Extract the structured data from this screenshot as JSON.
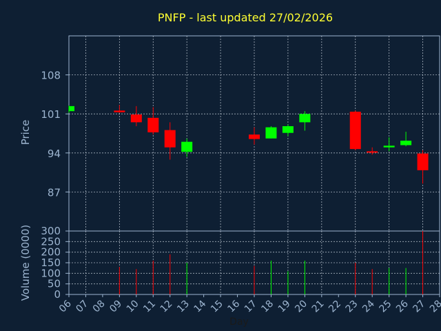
{
  "chart_data": {
    "type": "candlestick",
    "title": "PNFP - last updated 27/02/2026",
    "price_panel": {
      "ylabel": "Price",
      "ylim": [
        80,
        115
      ],
      "yticks": [
        87,
        94,
        101,
        108
      ],
      "grid": true
    },
    "volume_panel": {
      "ylabel": "Volume (0000)",
      "ylim": [
        0,
        300
      ],
      "yticks": [
        0,
        50,
        100,
        150,
        200,
        250,
        300
      ],
      "grid": true
    },
    "xlabel": "Day",
    "xticks": [
      "06",
      "07",
      "08",
      "09",
      "10",
      "11",
      "12",
      "13",
      "14",
      "15",
      "16",
      "17",
      "18",
      "19",
      "20",
      "21",
      "22",
      "23",
      "24",
      "25",
      "26",
      "27",
      "28"
    ],
    "colors": {
      "background": "#0e1f33",
      "axis": "#9db5d0",
      "title": "#ffff33",
      "grid": "#cfd8e3",
      "up": "#00ff00",
      "down": "#ff0000"
    },
    "candles": [
      {
        "day": "06",
        "open": 101.5,
        "high": 102.5,
        "low": 101.2,
        "close": 102.4,
        "volume": 0
      },
      {
        "day": "09",
        "open": 101.6,
        "high": 102.6,
        "low": 101.2,
        "close": 101.3,
        "volume": 130
      },
      {
        "day": "10",
        "open": 100.9,
        "high": 102.4,
        "low": 98.8,
        "close": 99.5,
        "volume": 120
      },
      {
        "day": "11",
        "open": 100.3,
        "high": 102.2,
        "low": 97.3,
        "close": 97.7,
        "volume": 160
      },
      {
        "day": "12",
        "open": 98.1,
        "high": 99.5,
        "low": 92.8,
        "close": 95.0,
        "volume": 190
      },
      {
        "day": "13",
        "open": 94.2,
        "high": 96.6,
        "low": 93.3,
        "close": 96.0,
        "volume": 150
      },
      {
        "day": "17",
        "open": 97.3,
        "high": 98.6,
        "low": 95.5,
        "close": 96.5,
        "volume": 135
      },
      {
        "day": "18",
        "open": 96.6,
        "high": 98.8,
        "low": 96.6,
        "close": 98.6,
        "volume": 160
      },
      {
        "day": "19",
        "open": 97.6,
        "high": 99.1,
        "low": 97.0,
        "close": 98.8,
        "volume": 110
      },
      {
        "day": "20",
        "open": 99.5,
        "high": 101.5,
        "low": 98.0,
        "close": 101.0,
        "volume": 160
      },
      {
        "day": "23",
        "open": 101.4,
        "high": 101.6,
        "low": 94.5,
        "close": 94.7,
        "volume": 150
      },
      {
        "day": "24",
        "open": 94.3,
        "high": 95.0,
        "low": 93.7,
        "close": 94.1,
        "volume": 120
      },
      {
        "day": "25",
        "open": 95.0,
        "high": 96.8,
        "low": 94.3,
        "close": 95.3,
        "volume": 125
      },
      {
        "day": "26",
        "open": 95.4,
        "high": 97.8,
        "low": 95.2,
        "close": 96.2,
        "volume": 125
      },
      {
        "day": "27",
        "open": 93.9,
        "high": 94.5,
        "low": 88.5,
        "close": 90.9,
        "volume": 300
      }
    ]
  }
}
